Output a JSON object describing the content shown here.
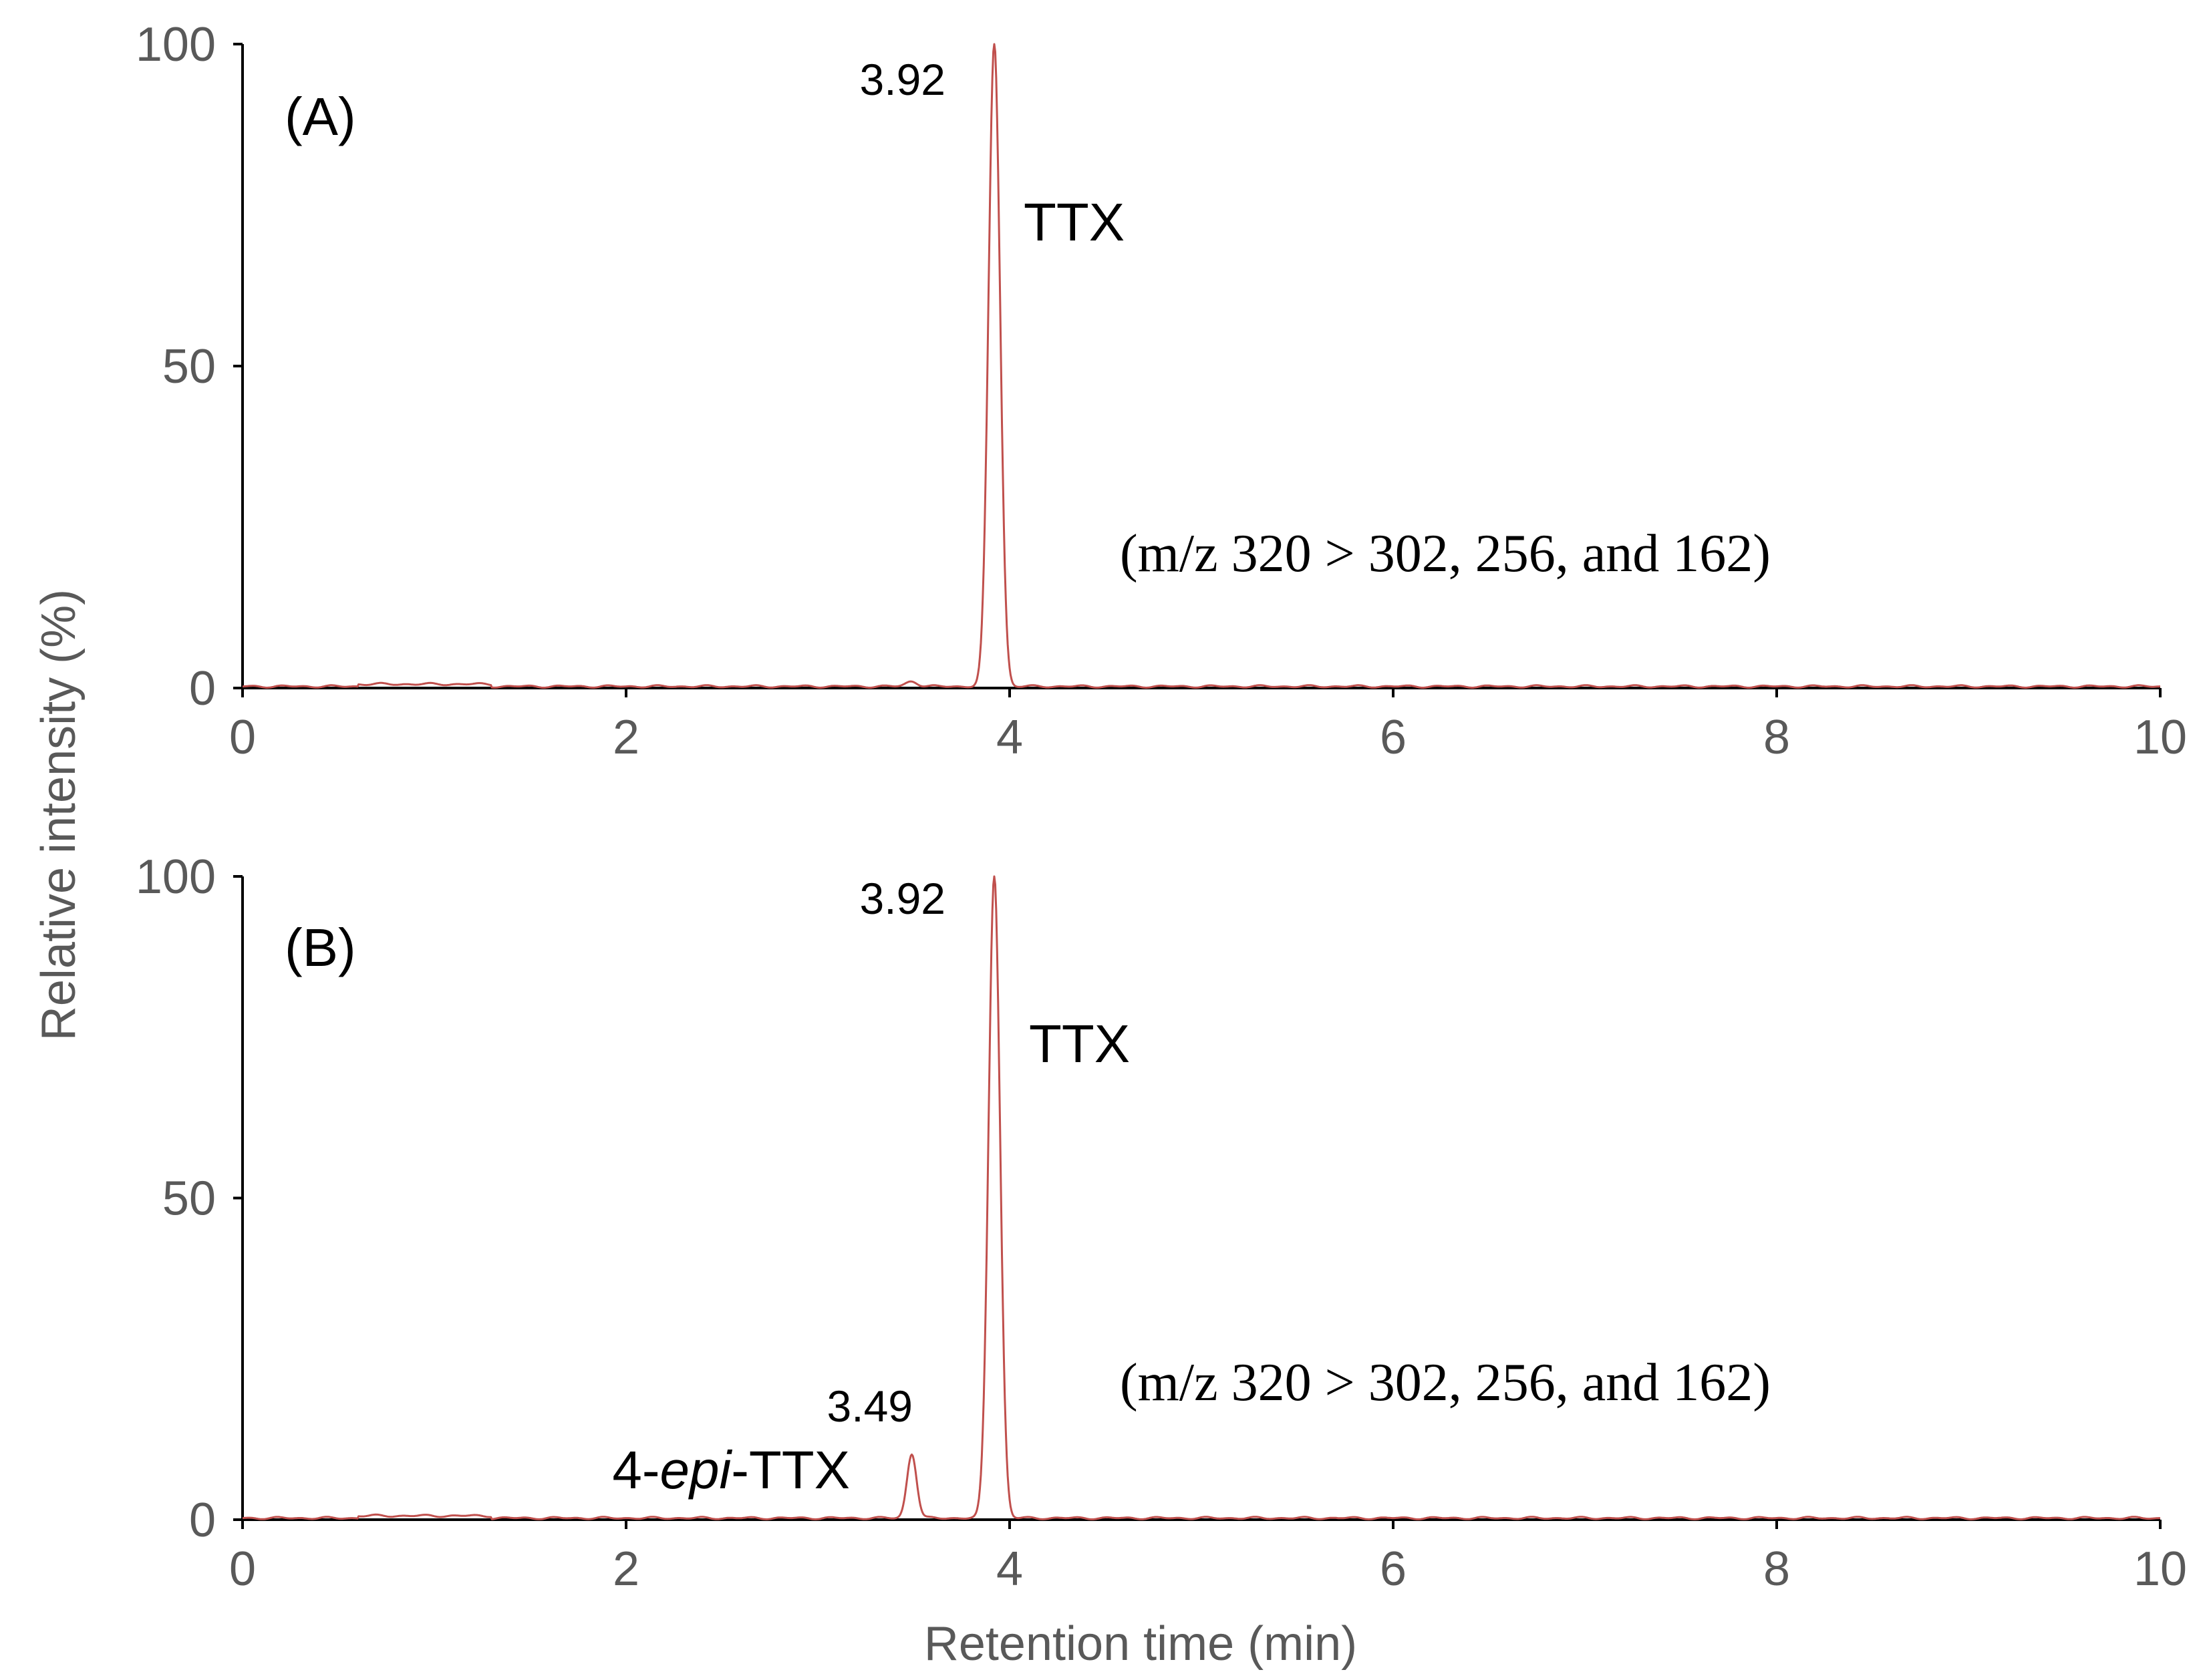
{
  "chart_data": {
    "type": "line",
    "xlabel": "Retention time (min)",
    "ylabel": "Relative intensity (%)",
    "line_color": "#C0504D",
    "panels": [
      {
        "label": "(A)",
        "xlim": [
          0,
          10
        ],
        "ylim": [
          0,
          100
        ],
        "x_ticks": [
          "0",
          "2",
          "4",
          "6",
          "8",
          "10"
        ],
        "y_ticks": [
          "0",
          "50",
          "100"
        ],
        "transition": "(m/z 320 > 302, 256, and 162)",
        "peaks": [
          {
            "retention_time": 3.49,
            "height": 0.8,
            "width": 0.03,
            "rt_label": "",
            "compound": ""
          },
          {
            "retention_time": 3.92,
            "height": 100,
            "width": 0.03,
            "rt_label": "3.92",
            "compound": "TTX"
          }
        ]
      },
      {
        "label": "(B)",
        "xlim": [
          0,
          10
        ],
        "ylim": [
          0,
          100
        ],
        "x_ticks": [
          "0",
          "2",
          "4",
          "6",
          "8",
          "10"
        ],
        "y_ticks": [
          "0",
          "50",
          "100"
        ],
        "transition": "(m/z 320 > 302, 256, and 162)",
        "peaks": [
          {
            "retention_time": 3.49,
            "height": 10,
            "width": 0.025,
            "rt_label": "3.49",
            "compound_prefix": "4-",
            "compound_italic": "epi",
            "compound_suffix": "-TTX"
          },
          {
            "retention_time": 3.92,
            "height": 100,
            "width": 0.03,
            "rt_label": "3.92",
            "compound": "TTX"
          }
        ]
      }
    ]
  }
}
